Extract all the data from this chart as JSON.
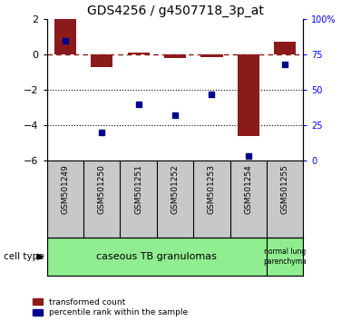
{
  "title": "GDS4256 / g4507718_3p_at",
  "samples": [
    "GSM501249",
    "GSM501250",
    "GSM501251",
    "GSM501252",
    "GSM501253",
    "GSM501254",
    "GSM501255"
  ],
  "red_bars": [
    2.0,
    -0.7,
    0.1,
    -0.2,
    -0.15,
    -4.6,
    0.75
  ],
  "blue_dots": [
    85,
    20,
    40,
    32,
    47,
    3,
    68
  ],
  "left_ylim": [
    -6,
    2
  ],
  "left_yticks": [
    2,
    0,
    -2,
    -4,
    -6
  ],
  "right_ylim": [
    0,
    100
  ],
  "right_yticks": [
    0,
    25,
    50,
    75,
    100
  ],
  "right_yticklabels": [
    "0",
    "25",
    "50",
    "75",
    "100%"
  ],
  "red_color": "#8B1A1A",
  "blue_color": "#00008B",
  "bar_width": 0.6,
  "dotted_hlines": [
    -2,
    -4
  ],
  "legend_red": "transformed count",
  "legend_blue": "percentile rank within the sample",
  "cell_type_label": "cell type",
  "group1_label": "caseous TB granulomas",
  "group2_label": "normal lung\nparenchyma",
  "group_color": "#90EE90",
  "gray_color": "#C8C8C8",
  "title_fontsize": 10
}
